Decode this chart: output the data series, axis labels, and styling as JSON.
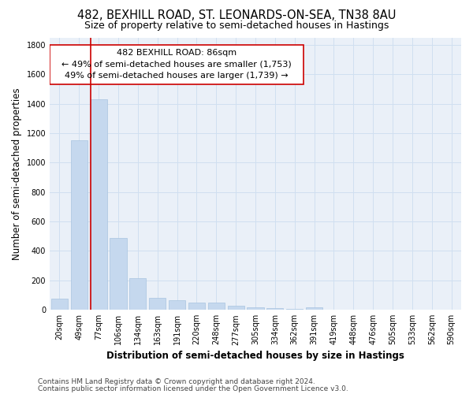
{
  "title": "482, BEXHILL ROAD, ST. LEONARDS-ON-SEA, TN38 8AU",
  "subtitle": "Size of property relative to semi-detached houses in Hastings",
  "xlabel": "Distribution of semi-detached houses by size in Hastings",
  "ylabel": "Number of semi-detached properties",
  "footnote1": "Contains HM Land Registry data © Crown copyright and database right 2024.",
  "footnote2": "Contains public sector information licensed under the Open Government Licence v3.0.",
  "annotation_line1": "482 BEXHILL ROAD: 86sqm",
  "annotation_line2": "← 49% of semi-detached houses are smaller (1,753)",
  "annotation_line3": "49% of semi-detached houses are larger (1,739) →",
  "bar_color": "#c5d8ee",
  "bar_edge_color": "#a8c4e0",
  "red_line_color": "#cc0000",
  "box_edge_color": "#cc0000",
  "grid_color": "#d0dff0",
  "bg_color": "#eaf0f8",
  "categories": [
    "20sqm",
    "49sqm",
    "77sqm",
    "106sqm",
    "134sqm",
    "163sqm",
    "191sqm",
    "220sqm",
    "248sqm",
    "277sqm",
    "305sqm",
    "334sqm",
    "362sqm",
    "391sqm",
    "419sqm",
    "448sqm",
    "476sqm",
    "505sqm",
    "533sqm",
    "562sqm",
    "590sqm"
  ],
  "values": [
    75,
    1150,
    1430,
    490,
    215,
    80,
    65,
    50,
    47,
    28,
    15,
    10,
    5,
    15,
    2,
    1,
    1,
    1,
    0,
    0,
    0
  ],
  "ylim": [
    0,
    1850
  ],
  "yticks": [
    0,
    200,
    400,
    600,
    800,
    1000,
    1200,
    1400,
    1600,
    1800
  ],
  "red_line_bin_index": 2,
  "figsize": [
    6.0,
    5.0
  ],
  "dpi": 100,
  "title_fontsize": 10.5,
  "subtitle_fontsize": 9,
  "annotation_fontsize": 8,
  "axis_label_fontsize": 8.5,
  "tick_fontsize": 7,
  "footnote_fontsize": 6.5
}
